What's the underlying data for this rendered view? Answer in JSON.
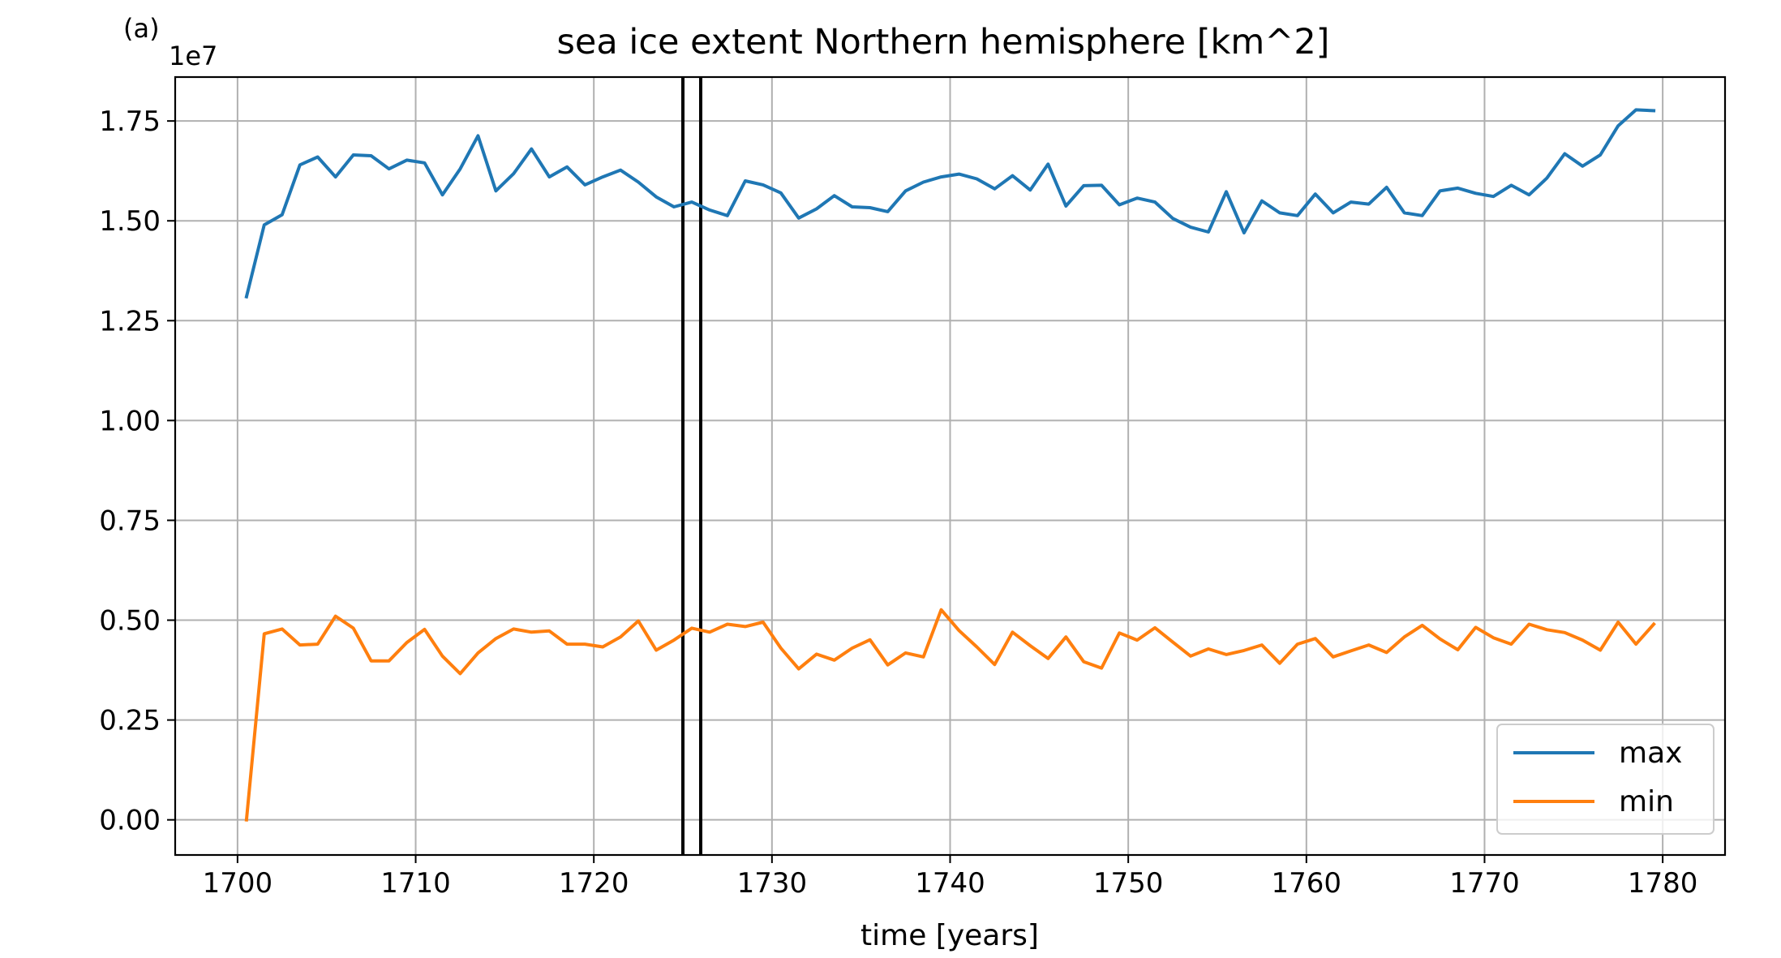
{
  "panel_label": "(a)",
  "chart_data": {
    "type": "line",
    "title": "sea ice extent Northern hemisphere [km^2]",
    "xlabel": "time [years]",
    "ylabel": "",
    "y_offset_label": "1e7",
    "xlim": [
      1696.5,
      1783.5
    ],
    "ylim": [
      -0.088,
      1.86
    ],
    "y_scale_factor": 10000000,
    "x_ticks": [
      1700,
      1710,
      1720,
      1730,
      1740,
      1750,
      1760,
      1770,
      1780
    ],
    "y_ticks": [
      0.0,
      0.25,
      0.5,
      0.75,
      1.0,
      1.25,
      1.5,
      1.75
    ],
    "y_tick_labels": [
      "0.00",
      "0.25",
      "0.50",
      "0.75",
      "1.00",
      "1.25",
      "1.50",
      "1.75"
    ],
    "grid": true,
    "legend_position": "lower-right",
    "vertical_lines": [
      1725.0,
      1726.0
    ],
    "vertical_line_color": "#000000",
    "x": [
      1700.5,
      1701.5,
      1702.5,
      1703.5,
      1704.5,
      1705.5,
      1706.5,
      1707.5,
      1708.5,
      1709.5,
      1710.5,
      1711.5,
      1712.5,
      1713.5,
      1714.5,
      1715.5,
      1716.5,
      1717.5,
      1718.5,
      1719.5,
      1720.5,
      1721.5,
      1722.5,
      1723.5,
      1724.5,
      1725.5,
      1726.5,
      1727.5,
      1728.5,
      1729.5,
      1730.5,
      1731.5,
      1732.5,
      1733.5,
      1734.5,
      1735.5,
      1736.5,
      1737.5,
      1738.5,
      1739.5,
      1740.5,
      1741.5,
      1742.5,
      1743.5,
      1744.5,
      1745.5,
      1746.5,
      1747.5,
      1748.5,
      1749.5,
      1750.5,
      1751.5,
      1752.5,
      1753.5,
      1754.5,
      1755.5,
      1756.5,
      1757.5,
      1758.5,
      1759.5,
      1760.5,
      1761.5,
      1762.5,
      1763.5,
      1764.5,
      1765.5,
      1766.5,
      1767.5,
      1768.5,
      1769.5,
      1770.5,
      1771.5,
      1772.5,
      1773.5,
      1774.5,
      1775.5,
      1776.5,
      1777.5,
      1778.5,
      1779.5
    ],
    "series": [
      {
        "name": "max",
        "color": "#1f77b4",
        "values": [
          1.31,
          1.49,
          1.515,
          1.64,
          1.66,
          1.61,
          1.665,
          1.663,
          1.63,
          1.652,
          1.645,
          1.565,
          1.63,
          1.713,
          1.575,
          1.618,
          1.68,
          1.61,
          1.635,
          1.59,
          1.61,
          1.627,
          1.597,
          1.56,
          1.535,
          1.547,
          1.527,
          1.513,
          1.6,
          1.59,
          1.57,
          1.507,
          1.53,
          1.563,
          1.535,
          1.533,
          1.523,
          1.575,
          1.597,
          1.61,
          1.617,
          1.605,
          1.58,
          1.613,
          1.577,
          1.642,
          1.537,
          1.588,
          1.589,
          1.54,
          1.557,
          1.547,
          1.506,
          1.484,
          1.472,
          1.573,
          1.47,
          1.55,
          1.52,
          1.513,
          1.567,
          1.52,
          1.547,
          1.542,
          1.584,
          1.52,
          1.513,
          1.575,
          1.582,
          1.569,
          1.561,
          1.589,
          1.565,
          1.607,
          1.668,
          1.637,
          1.665,
          1.738,
          1.778,
          1.776
        ]
      },
      {
        "name": "min",
        "color": "#ff7f0e",
        "values": [
          0.0,
          0.466,
          0.478,
          0.438,
          0.44,
          0.51,
          0.48,
          0.398,
          0.398,
          0.444,
          0.477,
          0.41,
          0.366,
          0.418,
          0.454,
          0.478,
          0.47,
          0.473,
          0.44,
          0.44,
          0.433,
          0.458,
          0.498,
          0.425,
          0.45,
          0.48,
          0.47,
          0.49,
          0.484,
          0.495,
          0.43,
          0.378,
          0.415,
          0.4,
          0.43,
          0.451,
          0.388,
          0.418,
          0.408,
          0.526,
          0.474,
          0.433,
          0.389,
          0.47,
          0.436,
          0.404,
          0.458,
          0.396,
          0.38,
          0.468,
          0.45,
          0.481,
          0.445,
          0.41,
          0.428,
          0.414,
          0.424,
          0.438,
          0.392,
          0.44,
          0.454,
          0.408,
          0.423,
          0.438,
          0.419,
          0.458,
          0.487,
          0.453,
          0.426,
          0.482,
          0.456,
          0.44,
          0.49,
          0.476,
          0.469,
          0.45,
          0.425,
          0.495,
          0.44,
          0.49
        ]
      }
    ]
  }
}
